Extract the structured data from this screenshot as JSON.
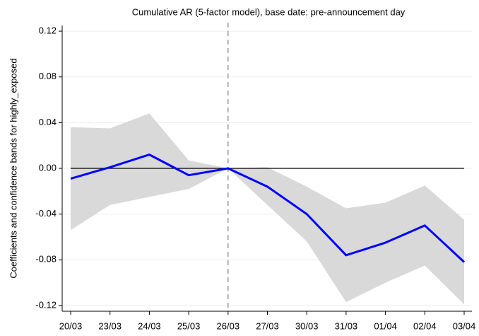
{
  "chart_data": {
    "type": "line_band",
    "title": "Cumulative AR (5-factor model), base date: pre-announcement day",
    "y_label": "Coefficients and confidence bands for highly_exposed",
    "categories": [
      "20/03",
      "23/03",
      "24/03",
      "25/03",
      "26/03",
      "27/03",
      "30/03",
      "31/03",
      "01/04",
      "02/04",
      "03/04"
    ],
    "values": [
      -0.009,
      0.001,
      0.012,
      -0.006,
      0,
      -0.016,
      -0.04,
      -0.076,
      -0.065,
      -0.05,
      -0.082
    ],
    "upper": [
      0.036,
      0.035,
      0.048,
      0.007,
      0,
      0.001,
      -0.016,
      -0.035,
      -0.03,
      -0.015,
      -0.045
    ],
    "lower": [
      -0.054,
      -0.032,
      -0.025,
      -0.018,
      0,
      -0.032,
      -0.064,
      -0.117,
      -0.1,
      -0.085,
      -0.119
    ],
    "color": "#0000ff",
    "band_color": "#d9d9d9",
    "ylim": [
      -0.125,
      0.125
    ],
    "yticks": [
      -0.12,
      -0.08,
      -0.04,
      {
        "value": 0,
        "label": "0.00"
      },
      0.04,
      0.08,
      0.12
    ],
    "hline": 0,
    "vline_index": 4,
    "grid": true
  }
}
